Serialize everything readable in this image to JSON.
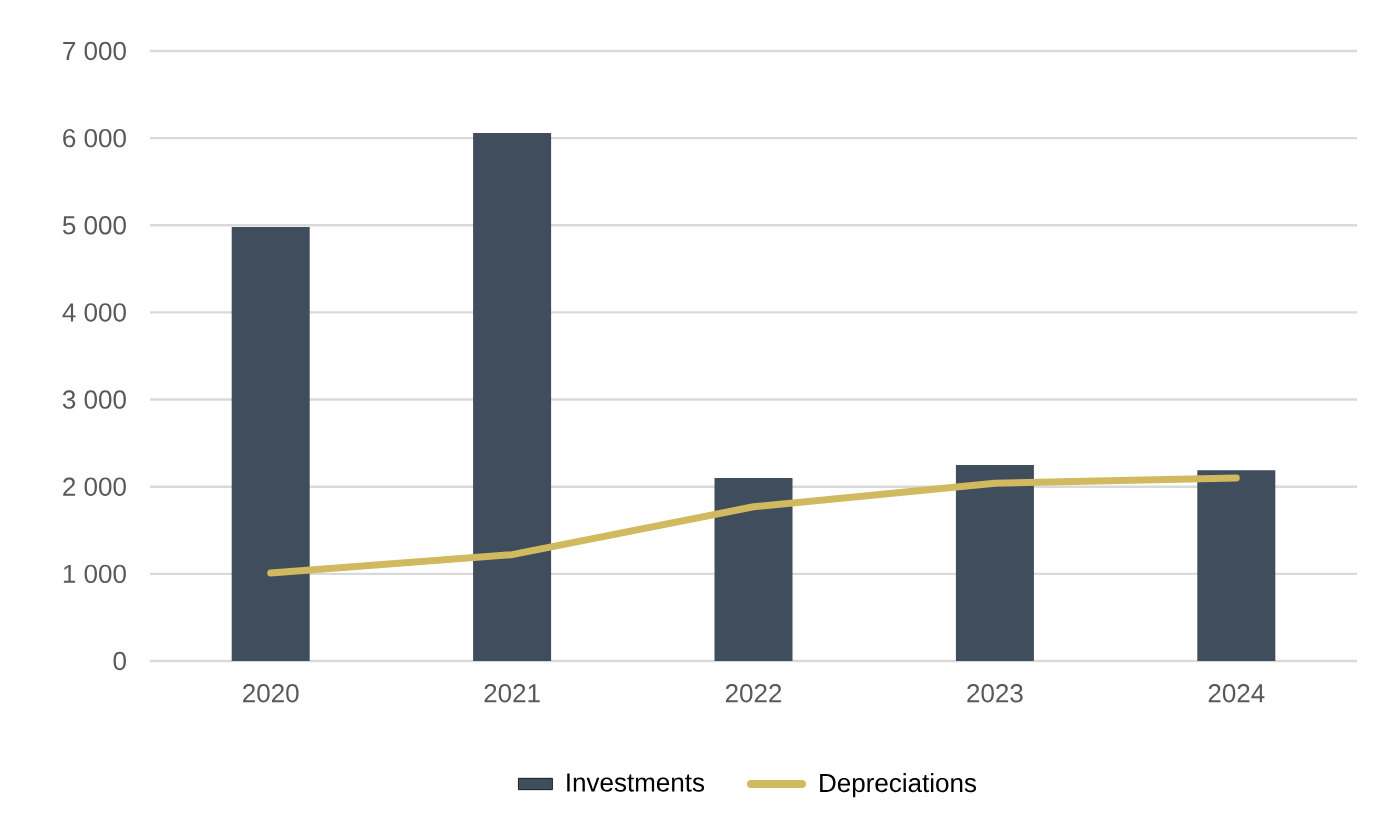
{
  "chart_data": {
    "type": "bar",
    "categories": [
      "2020",
      "2021",
      "2022",
      "2023",
      "2024"
    ],
    "series": [
      {
        "name": "Investments",
        "type": "bar",
        "color": "#404d5c",
        "values": [
          4980,
          6060,
          2100,
          2250,
          2190
        ]
      },
      {
        "name": "Depreciations",
        "type": "line",
        "color": "#d1b960",
        "values": [
          1010,
          1220,
          1770,
          2040,
          2100
        ]
      }
    ],
    "ylim": [
      0,
      7000
    ],
    "yticks": [
      0,
      {
        "value": 1000,
        "label": "1 000"
      },
      {
        "value": 2000,
        "label": "2 000"
      },
      {
        "value": 3000,
        "label": "3 000"
      },
      {
        "value": 4000,
        "label": "4 000"
      },
      {
        "value": 5000,
        "label": "5 000"
      },
      {
        "value": 6000,
        "label": "6 000"
      },
      {
        "value": 7000,
        "label": "7 000"
      }
    ],
    "grid": "y",
    "legend": "bottom",
    "marker": "none"
  }
}
